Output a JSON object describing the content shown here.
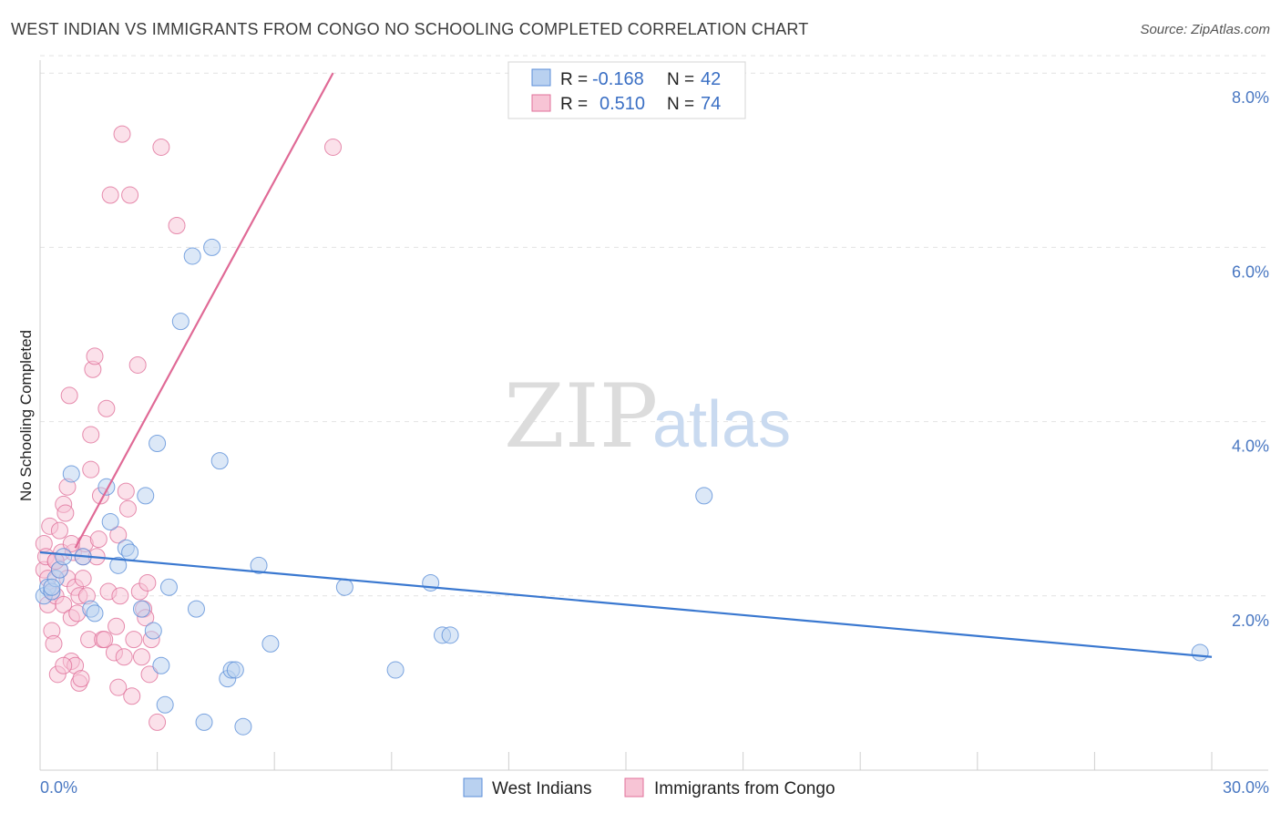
{
  "title": "WEST INDIAN VS IMMIGRANTS FROM CONGO NO SCHOOLING COMPLETED CORRELATION CHART",
  "source": "Source: ZipAtlas.com",
  "watermark": {
    "part1": "ZIP",
    "part2": "atlas"
  },
  "colors": {
    "blue": "#5b8ed8",
    "blue_fill": "#b9d1f0",
    "pink": "#e0709a",
    "pink_fill": "#f7c4d5",
    "tick": "#4a78c2"
  },
  "legend_top": {
    "r_label": "R =",
    "n_label": "N =",
    "rows": [
      {
        "r": "-0.168",
        "n": "42"
      },
      {
        "r": "0.510",
        "n": "74"
      }
    ]
  },
  "chart_data": {
    "type": "scatter",
    "title": "WEST INDIAN VS IMMIGRANTS FROM CONGO NO SCHOOLING COMPLETED CORRELATION CHART",
    "xlabel": "",
    "ylabel": "No Schooling Completed",
    "xlim": [
      0,
      30
    ],
    "ylim": [
      0,
      8
    ],
    "x_tick_labels": [
      "0.0%",
      "30.0%"
    ],
    "y_ticks": [
      2,
      4,
      6,
      8
    ],
    "y_tick_labels": [
      "2.0%",
      "4.0%",
      "6.0%",
      "8.0%"
    ],
    "grid": true,
    "legend_position": "bottom-center",
    "series": [
      {
        "name": "West Indians",
        "trend": {
          "x": [
            0,
            30
          ],
          "y": [
            2.5,
            1.3
          ]
        },
        "points": [
          [
            0.1,
            2.0
          ],
          [
            0.2,
            2.1
          ],
          [
            0.3,
            2.05
          ],
          [
            0.4,
            2.2
          ],
          [
            0.5,
            2.3
          ],
          [
            0.6,
            2.45
          ],
          [
            0.8,
            3.4
          ],
          [
            1.1,
            2.45
          ],
          [
            1.3,
            1.85
          ],
          [
            1.4,
            1.8
          ],
          [
            1.7,
            3.25
          ],
          [
            1.8,
            2.85
          ],
          [
            2.0,
            2.35
          ],
          [
            2.2,
            2.55
          ],
          [
            2.3,
            2.5
          ],
          [
            2.6,
            1.85
          ],
          [
            2.7,
            3.15
          ],
          [
            2.9,
            1.6
          ],
          [
            3.1,
            1.2
          ],
          [
            3.2,
            0.75
          ],
          [
            3.3,
            2.1
          ],
          [
            3.0,
            3.75
          ],
          [
            3.6,
            5.15
          ],
          [
            3.9,
            5.9
          ],
          [
            4.0,
            1.85
          ],
          [
            4.2,
            0.55
          ],
          [
            4.4,
            6.0
          ],
          [
            4.6,
            3.55
          ],
          [
            4.8,
            1.05
          ],
          [
            4.9,
            1.15
          ],
          [
            5.0,
            1.15
          ],
          [
            5.2,
            0.5
          ],
          [
            5.6,
            2.35
          ],
          [
            5.9,
            1.45
          ],
          [
            7.8,
            2.1
          ],
          [
            9.1,
            1.15
          ],
          [
            10.0,
            2.15
          ],
          [
            10.3,
            1.55
          ],
          [
            10.5,
            1.55
          ],
          [
            17.0,
            3.15
          ],
          [
            29.7,
            1.35
          ],
          [
            0.3,
            2.1
          ]
        ]
      },
      {
        "name": "Immigrants from Congo",
        "trend": {
          "x": [
            0.9,
            7.5
          ],
          "y": [
            2.55,
            8.0
          ]
        },
        "points": [
          [
            0.1,
            2.6
          ],
          [
            0.1,
            2.3
          ],
          [
            0.15,
            2.45
          ],
          [
            0.2,
            1.9
          ],
          [
            0.2,
            2.2
          ],
          [
            0.25,
            2.8
          ],
          [
            0.3,
            2.05
          ],
          [
            0.3,
            1.6
          ],
          [
            0.35,
            1.45
          ],
          [
            0.4,
            2.4
          ],
          [
            0.4,
            2.0
          ],
          [
            0.45,
            1.1
          ],
          [
            0.5,
            2.75
          ],
          [
            0.5,
            2.3
          ],
          [
            0.55,
            2.5
          ],
          [
            0.6,
            1.9
          ],
          [
            0.6,
            3.05
          ],
          [
            0.65,
            2.95
          ],
          [
            0.7,
            3.25
          ],
          [
            0.7,
            2.2
          ],
          [
            0.75,
            4.3
          ],
          [
            0.8,
            1.75
          ],
          [
            0.8,
            1.25
          ],
          [
            0.85,
            2.5
          ],
          [
            0.9,
            2.1
          ],
          [
            0.9,
            1.2
          ],
          [
            0.95,
            1.8
          ],
          [
            1.0,
            2.0
          ],
          [
            1.0,
            1.0
          ],
          [
            1.05,
            1.05
          ],
          [
            1.1,
            2.2
          ],
          [
            1.1,
            2.45
          ],
          [
            1.15,
            2.6
          ],
          [
            1.2,
            2.0
          ],
          [
            1.25,
            1.5
          ],
          [
            1.3,
            3.45
          ],
          [
            1.3,
            3.85
          ],
          [
            1.35,
            4.6
          ],
          [
            1.4,
            4.75
          ],
          [
            1.45,
            2.45
          ],
          [
            1.5,
            2.65
          ],
          [
            1.55,
            3.15
          ],
          [
            1.6,
            1.5
          ],
          [
            1.65,
            1.5
          ],
          [
            1.7,
            4.15
          ],
          [
            1.75,
            2.05
          ],
          [
            1.8,
            6.6
          ],
          [
            1.9,
            1.35
          ],
          [
            1.95,
            1.65
          ],
          [
            2.0,
            0.95
          ],
          [
            2.0,
            2.7
          ],
          [
            2.05,
            2.0
          ],
          [
            2.1,
            7.3
          ],
          [
            2.15,
            1.3
          ],
          [
            2.2,
            3.2
          ],
          [
            2.25,
            3.0
          ],
          [
            2.3,
            6.6
          ],
          [
            2.35,
            0.85
          ],
          [
            2.4,
            1.5
          ],
          [
            2.5,
            4.65
          ],
          [
            2.55,
            2.05
          ],
          [
            2.6,
            1.3
          ],
          [
            2.65,
            1.85
          ],
          [
            2.7,
            1.75
          ],
          [
            2.75,
            2.15
          ],
          [
            2.8,
            1.1
          ],
          [
            2.85,
            1.5
          ],
          [
            3.0,
            0.55
          ],
          [
            3.1,
            7.15
          ],
          [
            3.5,
            6.25
          ],
          [
            7.5,
            7.15
          ],
          [
            0.4,
            2.4
          ],
          [
            0.6,
            1.2
          ],
          [
            0.8,
            2.6
          ]
        ]
      }
    ]
  }
}
